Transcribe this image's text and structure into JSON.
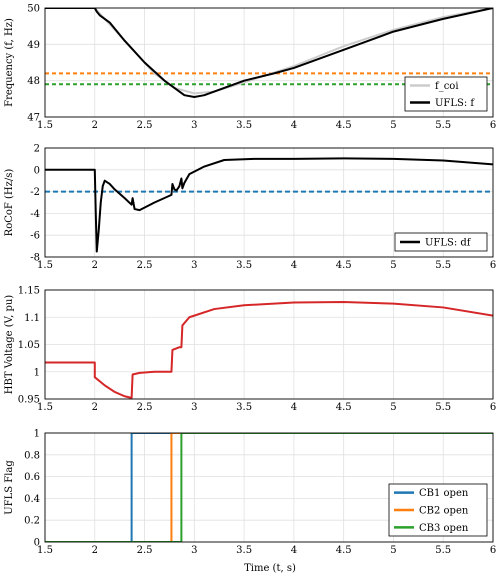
{
  "x_ticks": [
    "1.5",
    "2",
    "2.5",
    "3",
    "3.5",
    "4",
    "4.5",
    "5",
    "5.5",
    "6"
  ],
  "x_label": "Time (t, s)",
  "chart_data": [
    {
      "type": "line",
      "ylabel": "Frequency (f, Hz)",
      "xlim": [
        1.5,
        6
      ],
      "ylim": [
        47,
        50
      ],
      "y_ticks": [
        "47",
        "48",
        "49",
        "50"
      ],
      "grid": true,
      "legend": "bottom-right",
      "legend_labels": [
        "f_coi",
        "UFLS: f"
      ],
      "hlines": [
        {
          "y": 48.2,
          "color": "#ff7f0e",
          "style": "dotted"
        },
        {
          "y": 47.9,
          "color": "#2ca02c",
          "style": "dotted"
        }
      ],
      "series": [
        {
          "name": "f_coi",
          "color": "#cccccc",
          "width": 2,
          "x": [
            1.5,
            2.0,
            2.05,
            2.2,
            2.4,
            2.6,
            2.8,
            3.0,
            3.2,
            3.5,
            4.0,
            4.5,
            5.0,
            5.5,
            6.0
          ],
          "y": [
            50,
            50,
            49.85,
            49.4,
            48.8,
            48.2,
            47.8,
            47.65,
            47.7,
            47.95,
            48.4,
            48.95,
            49.4,
            49.75,
            50.0
          ]
        },
        {
          "name": "UFLS: f",
          "color": "#000000",
          "width": 2,
          "x": [
            1.5,
            2.0,
            2.02,
            2.05,
            2.15,
            2.3,
            2.5,
            2.7,
            2.9,
            3.0,
            3.1,
            3.3,
            3.5,
            3.8,
            4.0,
            4.5,
            5.0,
            5.5,
            6.0
          ],
          "y": [
            50,
            50,
            49.9,
            49.8,
            49.6,
            49.1,
            48.5,
            48.0,
            47.6,
            47.55,
            47.6,
            47.8,
            48.0,
            48.2,
            48.35,
            48.85,
            49.35,
            49.7,
            50.0
          ]
        }
      ]
    },
    {
      "type": "line",
      "ylabel": "RoCoF (Hz/s)",
      "xlim": [
        1.5,
        6
      ],
      "ylim": [
        -8,
        2
      ],
      "y_ticks": [
        "-8",
        "-6",
        "-4",
        "-2",
        "0",
        "2"
      ],
      "grid": true,
      "legend": "bottom-right",
      "legend_labels": [
        "UFLS: df"
      ],
      "hlines": [
        {
          "y": -2,
          "color": "#1f77b4",
          "style": "dashed"
        }
      ],
      "series": [
        {
          "name": "UFLS: df",
          "color": "#000000",
          "width": 2,
          "x": [
            1.5,
            2.0,
            2.01,
            2.02,
            2.04,
            2.06,
            2.08,
            2.1,
            2.15,
            2.2,
            2.3,
            2.37,
            2.38,
            2.4,
            2.45,
            2.6,
            2.77,
            2.78,
            2.8,
            2.82,
            2.85,
            2.87,
            2.88,
            2.9,
            2.95,
            3.1,
            3.3,
            3.6,
            4.0,
            4.5,
            5.0,
            5.5,
            6.0
          ],
          "y": [
            0,
            0,
            -4,
            -7.5,
            -5.5,
            -3.0,
            -1.5,
            -1.0,
            -1.3,
            -1.8,
            -2.6,
            -3.2,
            -2.6,
            -3.6,
            -3.7,
            -3.0,
            -2.3,
            -1.3,
            -1.8,
            -1.9,
            -1.5,
            -0.8,
            -1.7,
            -1.2,
            -0.4,
            0.3,
            0.9,
            1.0,
            1.0,
            1.05,
            1.0,
            0.85,
            0.5
          ]
        }
      ]
    },
    {
      "type": "line",
      "ylabel": "HBT Voltage (V, pu)",
      "xlim": [
        1.5,
        6
      ],
      "ylim": [
        0.95,
        1.15
      ],
      "y_ticks": [
        "0.95",
        "1",
        "1.05",
        "1.1",
        "1.15"
      ],
      "grid": true,
      "series": [
        {
          "name": "",
          "color": "#d62728",
          "width": 2,
          "x": [
            1.5,
            2.0,
            2.0,
            2.1,
            2.2,
            2.3,
            2.37,
            2.38,
            2.45,
            2.6,
            2.77,
            2.78,
            2.85,
            2.87,
            2.88,
            2.95,
            3.2,
            3.5,
            4.0,
            4.5,
            5.0,
            5.5,
            6.0
          ],
          "y": [
            1.017,
            1.017,
            0.99,
            0.975,
            0.963,
            0.955,
            0.952,
            0.995,
            0.998,
            1.0,
            1.0,
            1.04,
            1.045,
            1.045,
            1.085,
            1.1,
            1.115,
            1.122,
            1.127,
            1.128,
            1.125,
            1.118,
            1.103
          ]
        }
      ]
    },
    {
      "type": "line",
      "ylabel": "UFLS Flag",
      "xlim": [
        1.5,
        6
      ],
      "ylim": [
        0,
        1
      ],
      "y_ticks": [
        "0",
        "0.2",
        "0.4",
        "0.6",
        "0.8",
        "1"
      ],
      "grid": true,
      "legend": "bottom-right",
      "legend_labels": [
        "CB1 open",
        "CB2 open",
        "CB3 open"
      ],
      "series": [
        {
          "name": "CB1 open",
          "color": "#1f77b4",
          "width": 2,
          "x": [
            1.5,
            2.37,
            2.37,
            6.0
          ],
          "y": [
            0,
            0,
            1,
            1
          ]
        },
        {
          "name": "CB2 open",
          "color": "#ff7f0e",
          "width": 2,
          "x": [
            1.5,
            2.77,
            2.77,
            6.0
          ],
          "y": [
            0,
            0,
            1,
            1
          ]
        },
        {
          "name": "CB3 open",
          "color": "#2ca02c",
          "width": 2,
          "x": [
            1.5,
            2.87,
            2.87,
            6.0
          ],
          "y": [
            0,
            0,
            1,
            1
          ]
        }
      ]
    }
  ]
}
